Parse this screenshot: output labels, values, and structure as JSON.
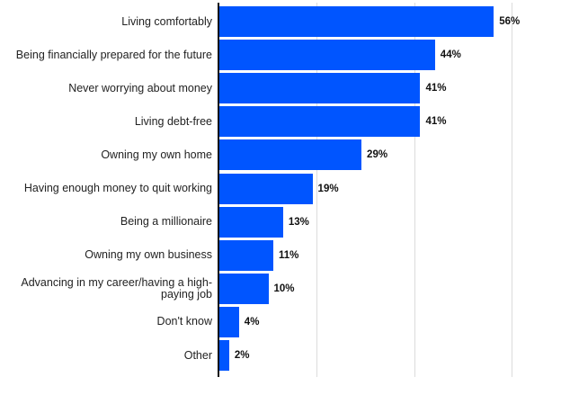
{
  "chart_data": {
    "type": "bar",
    "orientation": "horizontal",
    "title": "",
    "xlabel": "",
    "ylabel": "",
    "xlim": [
      0,
      60
    ],
    "grid": true,
    "gridlines_at": [
      20,
      40,
      60
    ],
    "bar_color": "#0055ff",
    "categories": [
      "Living comfortably",
      "Being financially prepared for the future",
      "Never worrying about money",
      "Living debt-free",
      "Owning my own home",
      "Having enough money to quit working",
      "Being a millionaire",
      "Owning my own business",
      "Advancing in my career/having a high-paying job",
      "Don't know",
      "Other"
    ],
    "values": [
      56,
      44,
      41,
      41,
      29,
      19,
      13,
      11,
      10,
      4,
      2
    ],
    "value_labels": [
      "56%",
      "44%",
      "41%",
      "41%",
      "29%",
      "19%",
      "13%",
      "11%",
      "10%",
      "4%",
      "2%"
    ]
  }
}
